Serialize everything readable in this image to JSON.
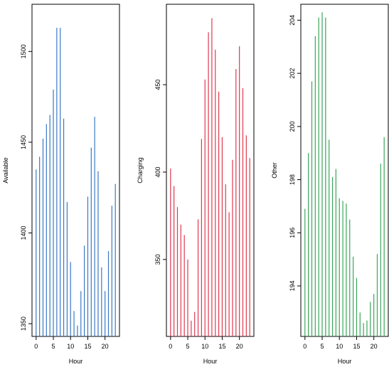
{
  "chart_data": [
    {
      "type": "bar",
      "style": "vertical-lines",
      "xlabel": "Hour",
      "ylabel": "Available",
      "color": "#3b78c2",
      "x": [
        0,
        1,
        2,
        3,
        4,
        5,
        6,
        7,
        8,
        9,
        10,
        11,
        12,
        13,
        14,
        15,
        16,
        17,
        18,
        19,
        20,
        21,
        22,
        23
      ],
      "values": [
        1435,
        1442,
        1452,
        1460,
        1465,
        1479,
        1513,
        1513,
        1463,
        1417,
        1384,
        1357,
        1349,
        1368,
        1393,
        1420,
        1447,
        1464,
        1434,
        1381,
        1368,
        1390,
        1415,
        1427
      ],
      "ylim": [
        1343,
        1526
      ],
      "xticks": [
        0,
        5,
        10,
        15,
        20
      ],
      "yticks": [
        1350,
        1400,
        1450,
        1500
      ]
    },
    {
      "type": "bar",
      "style": "vertical-lines",
      "xlabel": "Hour",
      "ylabel": "Charging",
      "color": "#e0394f",
      "x": [
        0,
        1,
        2,
        3,
        4,
        5,
        6,
        7,
        8,
        9,
        10,
        11,
        12,
        13,
        14,
        15,
        16,
        17,
        18,
        19,
        20,
        21,
        22,
        23
      ],
      "values": [
        402,
        392,
        380,
        370,
        364,
        350,
        315,
        320,
        373,
        419,
        453,
        480,
        488,
        470,
        446,
        420,
        393,
        377,
        407,
        459,
        472,
        448,
        421,
        408
      ],
      "ylim": [
        306,
        496
      ],
      "xticks": [
        0,
        5,
        10,
        15,
        20
      ],
      "yticks": [
        350,
        400,
        450
      ]
    },
    {
      "type": "bar",
      "style": "vertical-lines",
      "xlabel": "Hour",
      "ylabel": "Other",
      "color": "#3aa55a",
      "x": [
        0,
        1,
        2,
        3,
        4,
        5,
        6,
        7,
        8,
        9,
        10,
        11,
        12,
        13,
        14,
        15,
        16,
        17,
        18,
        19,
        20,
        21,
        22,
        23
      ],
      "values": [
        196.9,
        199.0,
        201.7,
        203.4,
        204.1,
        204.3,
        204.1,
        199.5,
        198.1,
        198.4,
        197.3,
        197.2,
        197.1,
        196.5,
        195.1,
        194.3,
        193.0,
        192.6,
        192.7,
        193.4,
        193.7,
        195.2,
        198.6,
        199.6
      ],
      "ylim": [
        192.1,
        204.6
      ],
      "xticks": [
        0,
        5,
        10,
        15,
        20
      ],
      "yticks": [
        194,
        196,
        198,
        200,
        202,
        204
      ]
    }
  ]
}
